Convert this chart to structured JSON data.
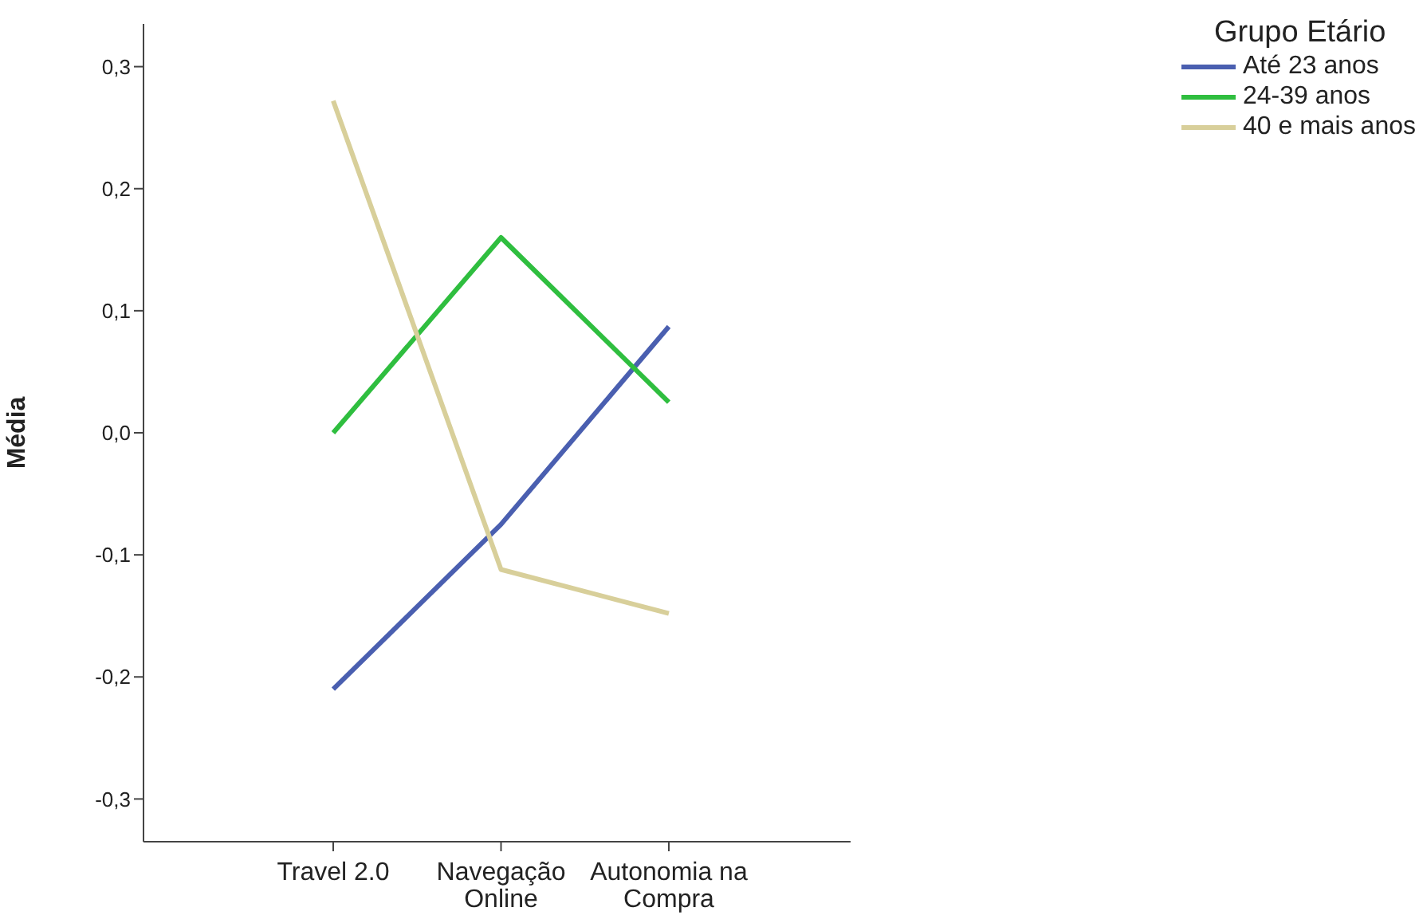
{
  "chart_data": {
    "type": "line",
    "ylabel": "Média",
    "legend_title": "Grupo Etário",
    "legend": "top right",
    "grid": false,
    "marker": "none",
    "categories": [
      "Travel 2.0",
      "Navegação Online",
      "Autonomia na Compra"
    ],
    "ylim": [
      -0.335,
      0.335
    ],
    "yticks": [
      {
        "value": -0.3,
        "label": "-0,3"
      },
      {
        "value": -0.2,
        "label": "-0,2"
      },
      {
        "value": -0.1,
        "label": "-0,1"
      },
      {
        "value": 0,
        "label": "0,0"
      },
      {
        "value": 0.1,
        "label": "0,1"
      },
      {
        "value": 0.2,
        "label": "0,2"
      },
      {
        "value": 0.3,
        "label": "0,3"
      }
    ],
    "series": [
      {
        "name": "Até 23 anos",
        "color": "#4a5fb0",
        "values": [
          -0.21,
          -0.075,
          0.087
        ]
      },
      {
        "name": "24-39 anos",
        "color": "#2fbe3f",
        "values": [
          0.0,
          0.16,
          0.025
        ]
      },
      {
        "name": "40 e mais anos",
        "color": "#d8cf9a",
        "values": [
          0.272,
          -0.112,
          -0.148
        ]
      }
    ]
  }
}
